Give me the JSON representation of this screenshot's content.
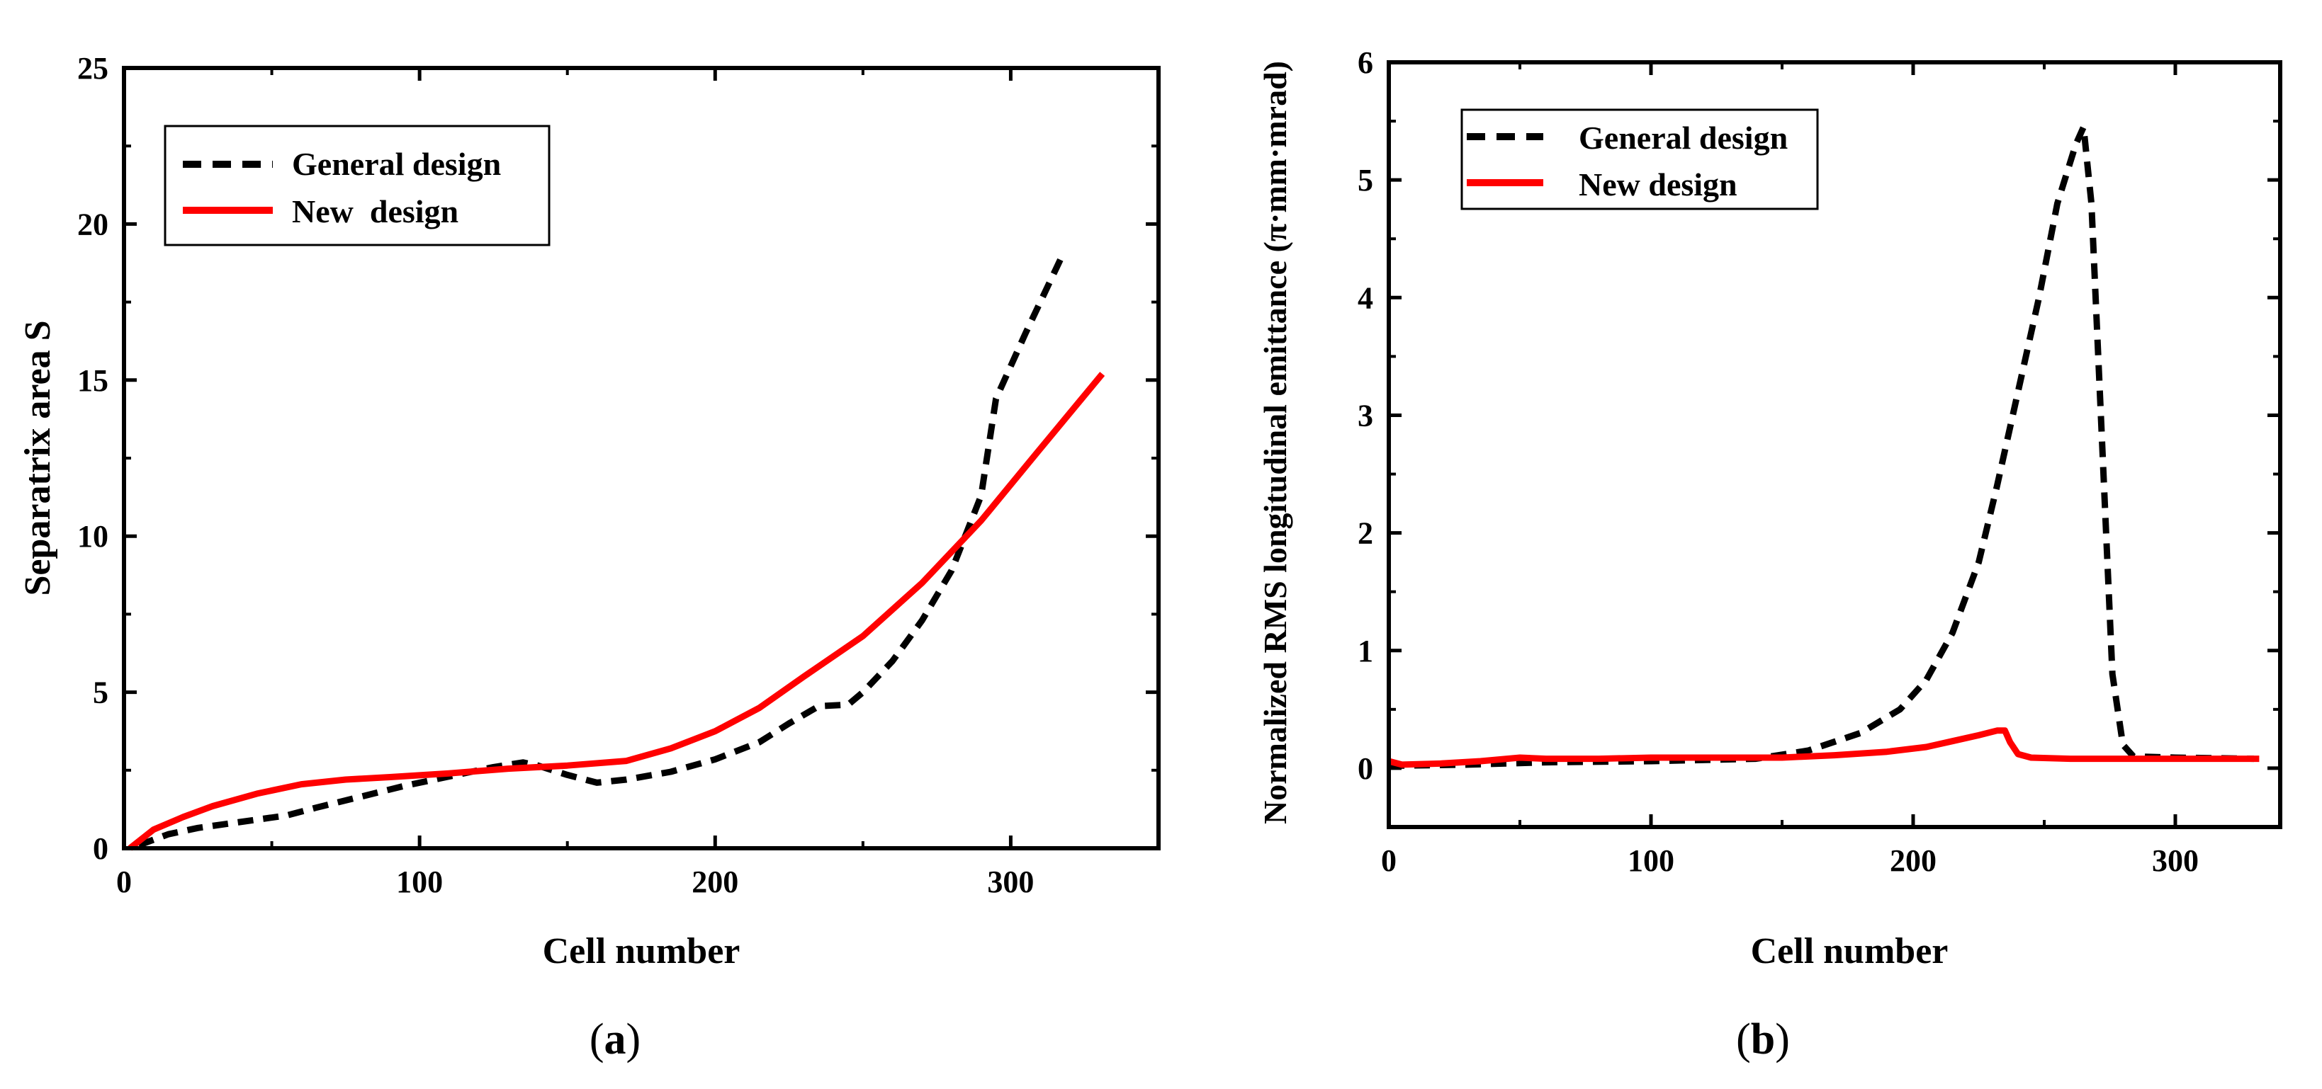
{
  "chart_data": [
    {
      "type": "line",
      "caption_letter": "a",
      "xlabel": "Cell number",
      "ylabel": "Separatrix area  S",
      "xlim": [
        0,
        350
      ],
      "ylim": [
        0,
        25
      ],
      "xticks": [
        0,
        100,
        200,
        300
      ],
      "yticks": [
        0,
        5,
        10,
        15,
        20,
        25
      ],
      "legend_position": "top-left",
      "series": [
        {
          "name": "General design",
          "style": "dashed",
          "color": "#000000",
          "x": [
            5,
            15,
            25,
            40,
            55,
            65,
            80,
            95,
            110,
            125,
            135,
            140,
            150,
            160,
            170,
            185,
            200,
            215,
            225,
            235,
            245,
            250,
            260,
            270,
            280,
            290,
            295,
            305,
            317
          ],
          "y": [
            0.1,
            0.45,
            0.65,
            0.85,
            1.05,
            1.3,
            1.65,
            2.0,
            2.3,
            2.6,
            2.75,
            2.65,
            2.35,
            2.1,
            2.2,
            2.45,
            2.85,
            3.4,
            4.0,
            4.55,
            4.6,
            5.0,
            6.0,
            7.3,
            8.9,
            11.3,
            14.4,
            16.5,
            18.9
          ]
        },
        {
          "name": "New  design",
          "style": "solid",
          "color": "#ff0000",
          "x": [
            2,
            10,
            20,
            30,
            45,
            60,
            75,
            90,
            110,
            130,
            150,
            170,
            185,
            200,
            215,
            230,
            250,
            270,
            290,
            310,
            331
          ],
          "y": [
            0.0,
            0.6,
            1.0,
            1.35,
            1.75,
            2.05,
            2.2,
            2.28,
            2.4,
            2.55,
            2.65,
            2.8,
            3.2,
            3.75,
            4.5,
            5.5,
            6.8,
            8.5,
            10.5,
            12.8,
            15.2
          ]
        }
      ]
    },
    {
      "type": "line",
      "caption_letter": "b",
      "xlabel": "Cell number",
      "ylabel": "Normalized RMS longitudinal emittance (π·mm·mrad)",
      "xlim": [
        0,
        340
      ],
      "ylim": [
        -0.5,
        6
      ],
      "xticks": [
        0,
        100,
        200,
        300
      ],
      "yticks": [
        0,
        1,
        2,
        3,
        4,
        5,
        6
      ],
      "legend_position": "top-left",
      "series": [
        {
          "name": "General design",
          "style": "dashed",
          "color": "#000000",
          "x": [
            0,
            30,
            60,
            100,
            140,
            160,
            180,
            195,
            205,
            215,
            225,
            232,
            240,
            248,
            255,
            262,
            265,
            268,
            272,
            276,
            280,
            284,
            300,
            330
          ],
          "y": [
            0.02,
            0.03,
            0.05,
            0.06,
            0.08,
            0.15,
            0.3,
            0.5,
            0.75,
            1.15,
            1.75,
            2.4,
            3.2,
            4.0,
            4.8,
            5.3,
            5.45,
            4.8,
            2.8,
            0.8,
            0.2,
            0.1,
            0.09,
            0.08
          ]
        },
        {
          "name": "New design",
          "style": "solid",
          "color": "#ff0000",
          "x": [
            0,
            5,
            20,
            35,
            50,
            60,
            80,
            100,
            120,
            150,
            170,
            190,
            205,
            215,
            225,
            232,
            235,
            237,
            240,
            245,
            260,
            300,
            332
          ],
          "y": [
            0.06,
            0.03,
            0.04,
            0.06,
            0.09,
            0.08,
            0.08,
            0.09,
            0.09,
            0.09,
            0.11,
            0.14,
            0.18,
            0.23,
            0.28,
            0.32,
            0.32,
            0.22,
            0.12,
            0.09,
            0.08,
            0.08,
            0.08
          ]
        }
      ]
    }
  ]
}
